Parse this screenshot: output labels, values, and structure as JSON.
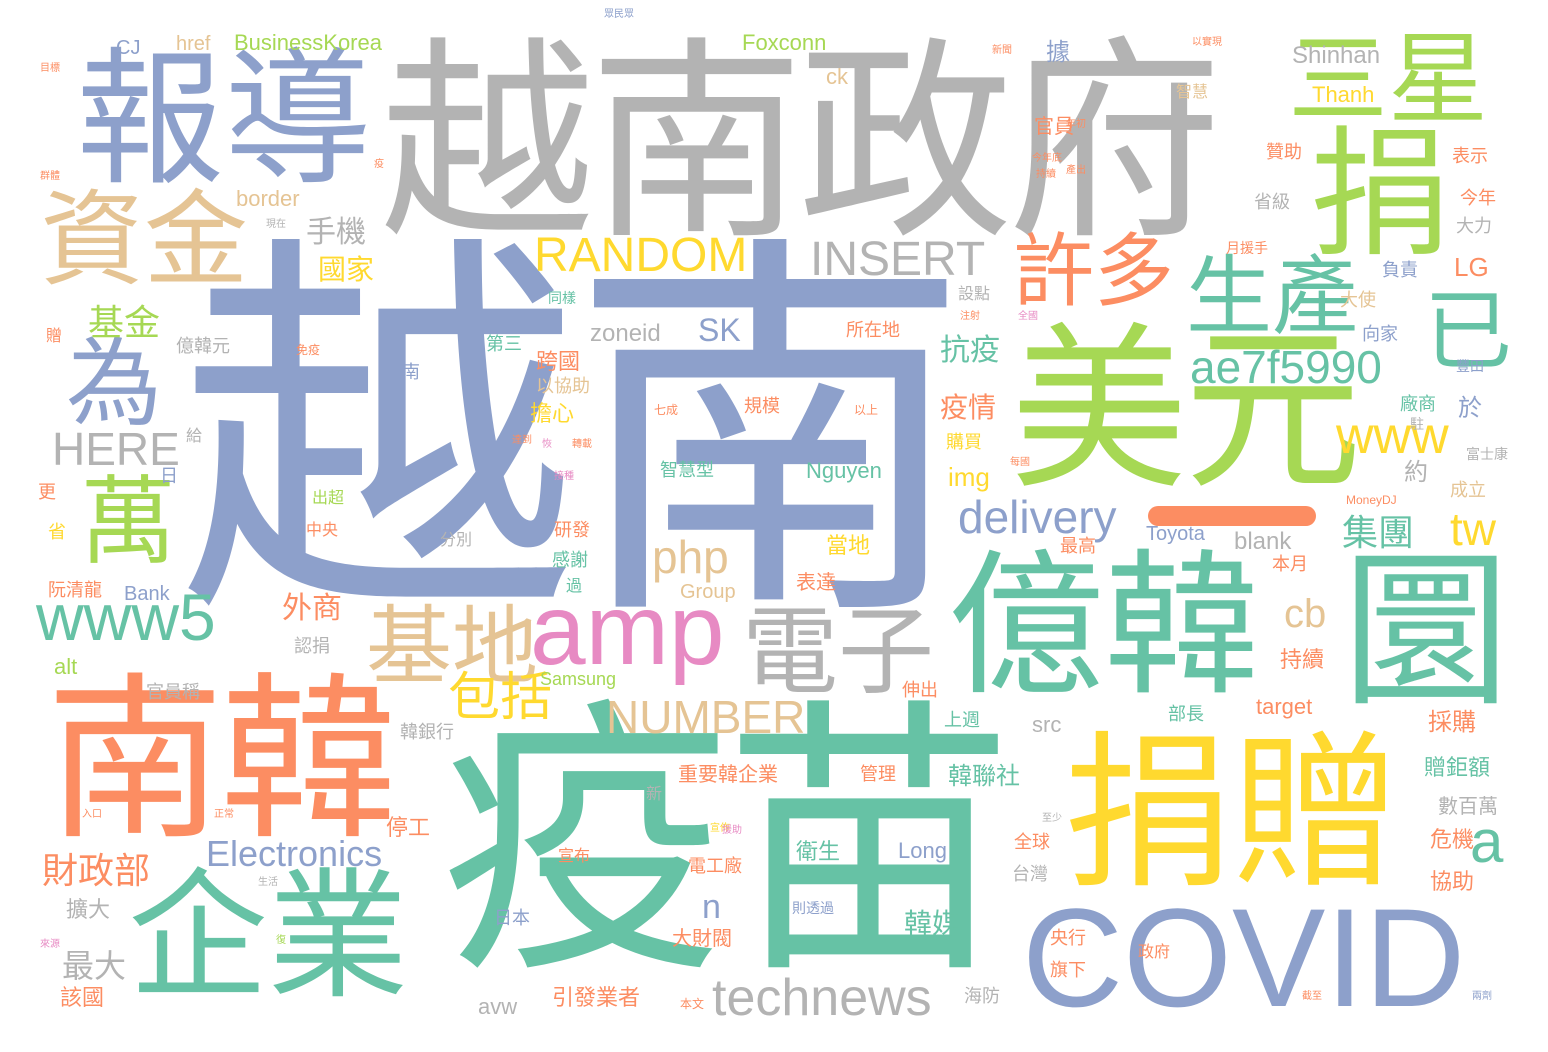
{
  "palette": {
    "blue": "#8da0cb",
    "gray": "#b3b3b3",
    "orange": "#fc8d62",
    "green": "#66c2a5",
    "lime": "#a6d854",
    "yellow": "#ffd92f",
    "tan": "#e5c494",
    "pink": "#e78ac3"
  },
  "words": {
    "w1": "越南",
    "w2": "越南政府",
    "w3": "疫苗",
    "w4": "南韓",
    "w5": "美元",
    "w6": "捐贈",
    "w7": "億韓",
    "w8": "圜",
    "w9": "報導",
    "w10": "企業",
    "w11": "COVID",
    "w12": "三星",
    "w13": "捐",
    "w14": "資金",
    "w15": "amp",
    "w16": "電子",
    "w17": "基地",
    "w18": "生產",
    "w19": "許多",
    "w20": "萬",
    "w21": "為",
    "w22": "www5",
    "w23": "已",
    "w24": "technews",
    "w25": "ae7f5990",
    "w26": "RANDOM",
    "w27": "INSERT",
    "w28": "delivery",
    "w29": "www",
    "w30": "NUMBER",
    "w31": "HERE",
    "w32": "php",
    "w33": "包括",
    "w34": "Electronics",
    "w35": "tw",
    "w36": "a",
    "w37": "cb",
    "w38": "手機",
    "w39": "基金",
    "w40": "集團",
    "w41": "財政部",
    "w42": "抗疫",
    "w43": "外商",
    "w44": "SK",
    "w45": "國家",
    "w46": "疫情",
    "w47": "最大",
    "w48": "韓媒",
    "w49": "n",
    "w50": "BusinessKorea",
    "w51": "Foxconn",
    "w52": "Shinhan",
    "w53": "Thanh",
    "w54": "zoneid",
    "w55": "Nguyen",
    "w56": "Long",
    "w57": "Toyota",
    "w58": "blank",
    "w59": "Samsung",
    "w60": "Group",
    "w61": "Bank",
    "w62": "target",
    "w63": "src",
    "w64": "img",
    "w65": "border",
    "w66": "href",
    "w67": "CJ",
    "w68": "ck",
    "w69": "LG",
    "w70": "alt",
    "w71": "avw",
    "w72": "跨國",
    "w73": "擔心",
    "w74": "約",
    "w75": "於",
    "w76": "據",
    "w77": "官員",
    "w78": "贊助",
    "w79": "省級",
    "w80": "今年",
    "w81": "大力",
    "w82": "表示",
    "w83": "負責",
    "w84": "大使",
    "w85": "向家",
    "w86": "廠商",
    "w87": "成立",
    "w88": "當地",
    "w89": "感謝",
    "w90": "研發",
    "w91": "表達",
    "w92": "重要韓企業",
    "w93": "韓聯社",
    "w94": "持續",
    "w95": "採購",
    "w96": "贈鉅額",
    "w97": "數百萬",
    "w98": "危機",
    "w99": "協助",
    "w100": "衛生",
    "w101": "電工廠",
    "w102": "大財閥",
    "w103": "引發業者",
    "w104": "停工",
    "w105": "擴大",
    "w106": "該國",
    "w107": "阮清龍",
    "w108": "最高",
    "w109": "本月",
    "w110": "全球",
    "w111": "台灣",
    "w112": "央行",
    "w113": "旗下",
    "w114": "政府",
    "w115": "海防",
    "w116": "日本",
    "w117": "管理",
    "w118": "上週",
    "w119": "伸出",
    "w120": "部長",
    "w121": "韓銀行",
    "w122": "官員稱",
    "w123": "認捐",
    "w124": "中央",
    "w125": "出超",
    "w126": "億韓元",
    "w127": "第三",
    "w128": "以協助",
    "w129": "規模",
    "w130": "智慧型",
    "w131": "購買",
    "w132": "所在地",
    "w133": "設點",
    "w134": "南",
    "w135": "給",
    "w136": "日",
    "w137": "更",
    "w138": "省",
    "w139": "新",
    "w140": "分別",
    "w141": "過",
    "w142": "智慧",
    "w143": "宣布",
    "w144": "則透過",
    "w145": "同樣",
    "w146": "月援手",
    "w147": "贈",
    "w148": "富士康",
    "w149": "豐田",
    "w150": "駐",
    "w151": "MoneyDJ",
    "w152": "七成",
    "w153": "以上",
    "w154": "免疫",
    "w155": "本文",
    "w156": "以實現",
    "w157": "新聞",
    "w158": "年初",
    "w159": "今年底",
    "w160": "持續",
    "w161": "注射",
    "w162": "全國",
    "w163": "目標",
    "w164": "群體",
    "w165": "疫",
    "w166": "眾民眾",
    "w167": "宣佈",
    "w168": "援助",
    "w169": "至少",
    "w170": "正常",
    "w171": "入口",
    "w172": "生活",
    "w173": "恢",
    "w174": "復",
    "w175": "截至",
    "w176": "兩劑",
    "w177": "來源",
    "w178": "每國",
    "w179": "接種",
    "w180": "產出",
    "w181": "轉載",
    "w182": "達到",
    "w183": "現在"
  }
}
